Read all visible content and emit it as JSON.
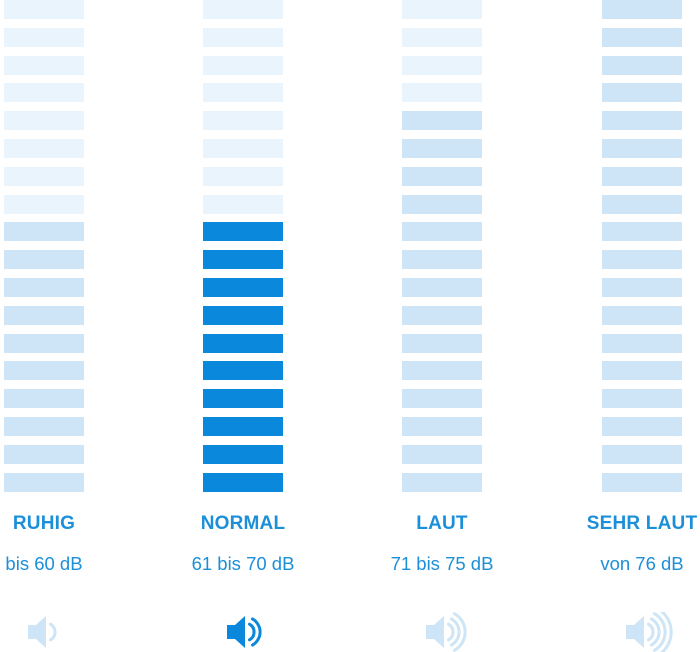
{
  "meter_total_segments": 18,
  "colors": {
    "empty": "#e9f4fc",
    "level": "#cde5f6",
    "active": "#0a88dc",
    "text": "#1c8fd9",
    "speaker_muted": "#cde5f6",
    "speaker_active": "#0a88dc"
  },
  "categories": [
    {
      "title": "RUHIG",
      "range": "bis 60 dB",
      "level_segments": 10,
      "active": false,
      "waves": 1,
      "icon": "speaker-icon-1-wave"
    },
    {
      "title": "NORMAL",
      "range": "61 bis 70 dB",
      "level_segments": 10,
      "active": true,
      "waves": 2,
      "icon": "speaker-icon-2-waves"
    },
    {
      "title": "LAUT",
      "range": "71 bis 75 dB",
      "level_segments": 14,
      "active": false,
      "waves": 3,
      "icon": "speaker-icon-3-waves"
    },
    {
      "title": "SEHR LAUT",
      "range": "von 76 dB",
      "level_segments": 18,
      "active": false,
      "waves": 4,
      "icon": "speaker-icon-4-waves"
    }
  ]
}
